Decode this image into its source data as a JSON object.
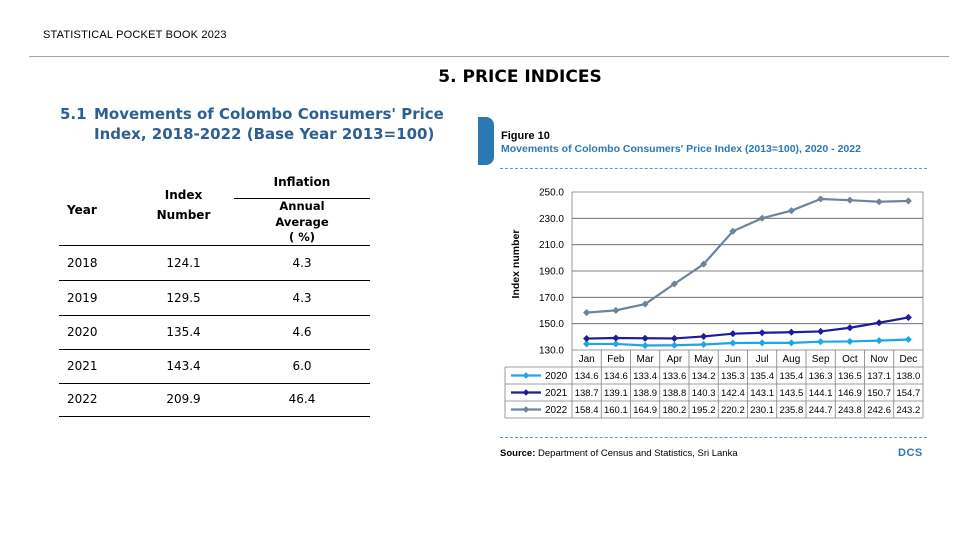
{
  "header": {
    "book_title": "STATISTICAL POCKET BOOK 2023"
  },
  "page": {
    "title": "5.  PRICE INDICES"
  },
  "section": {
    "number": "5.1",
    "title_line1": "Movements of Colombo Consumers' Price",
    "title_line2": "Index, 2018-2022 (Base Year 2013=100)"
  },
  "table": {
    "headers": {
      "year": "Year",
      "index_line1": "Index",
      "index_line2": "Number",
      "inflation": "Inflation",
      "annual_line1": "Annual",
      "annual_line2": "Average",
      "annual_line3": "( %)"
    },
    "rows": [
      {
        "year": "2018",
        "index": "124.1",
        "inflation": "4.3"
      },
      {
        "year": "2019",
        "index": "129.5",
        "inflation": "4.3"
      },
      {
        "year": "2020",
        "index": "135.4",
        "inflation": "4.6"
      },
      {
        "year": "2021",
        "index": "143.4",
        "inflation": "6.0"
      },
      {
        "year": "2022",
        "index": "209.9",
        "inflation": "46.4"
      }
    ]
  },
  "figure": {
    "label": "Figure 10",
    "title": "Movements of Colombo Consumers'  Price Index (2013=100), 2020 - 2022",
    "source_label": "Source:",
    "source_text": "Department of Census and Statistics, Sri Lanka",
    "logo_text": "DCS"
  },
  "chart_data": {
    "type": "line",
    "title": "Movements of Colombo Consumers'  Price Index (2013=100), 2020 - 2022",
    "ylabel": "Index number",
    "xlabel": "",
    "ylim": [
      130,
      250
    ],
    "yticks": [
      "130.0",
      "150.0",
      "170.0",
      "190.0",
      "210.0",
      "230.0",
      "250.0"
    ],
    "categories": [
      "Jan",
      "Feb",
      "Mar",
      "Apr",
      "May",
      "Jun",
      "Jul",
      "Aug",
      "Sep",
      "Oct",
      "Nov",
      "Dec"
    ],
    "grid": "horizontal",
    "legend": "data-table-bottom",
    "series": [
      {
        "name": "2020",
        "color": "#1ea7e1",
        "values": [
          134.6,
          134.6,
          133.4,
          133.6,
          134.2,
          135.3,
          135.4,
          135.4,
          136.3,
          136.5,
          137.1,
          138.0
        ]
      },
      {
        "name": "2021",
        "color": "#1f1a9e",
        "values": [
          138.7,
          139.1,
          138.9,
          138.8,
          140.3,
          142.4,
          143.1,
          143.5,
          144.1,
          146.9,
          150.7,
          154.7
        ]
      },
      {
        "name": "2022",
        "color": "#6c849c",
        "values": [
          158.4,
          160.1,
          164.9,
          180.2,
          195.2,
          220.2,
          230.1,
          235.8,
          244.7,
          243.8,
          242.6,
          243.2
        ]
      }
    ]
  }
}
